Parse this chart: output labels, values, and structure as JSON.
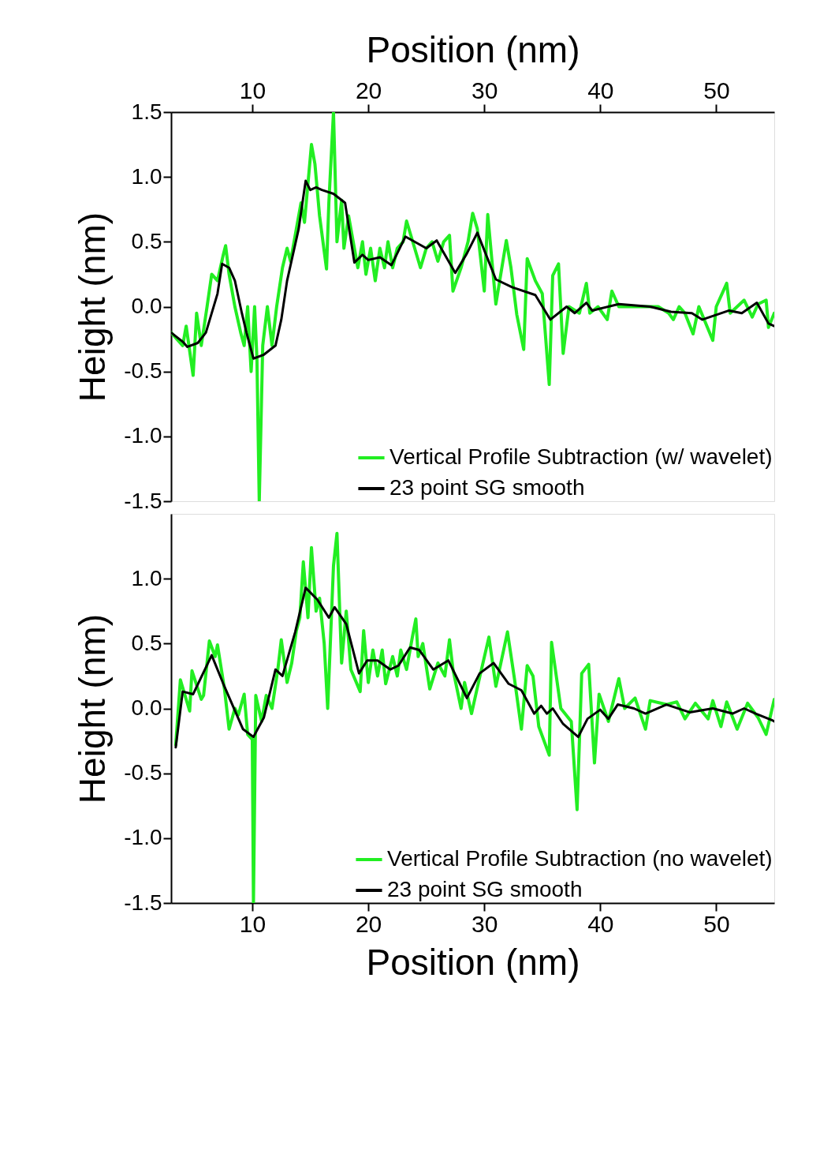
{
  "chart_data": [
    {
      "type": "line",
      "xlabel": "Position (nm)",
      "ylabel": "Height (nm)",
      "xlim": [
        3,
        55
      ],
      "ylim": [
        -1.5,
        1.5
      ],
      "xticks": [
        10,
        20,
        30,
        40,
        50
      ],
      "yticks": [
        {
          "value": -1.5,
          "label": "-1.5"
        },
        {
          "value": -1.0,
          "label": "-1.0"
        },
        {
          "value": -0.5,
          "label": "-0.5"
        },
        {
          "value": 0.0,
          "label": "0.0"
        },
        {
          "value": 0.5,
          "label": "0.5"
        },
        {
          "value": 1.0,
          "label": "1.0"
        },
        {
          "value": 1.5,
          "label": "1.5"
        }
      ],
      "legend": "bottom right",
      "series": [
        {
          "name": "Vertical Profile Subtraction (w/ wavelet)",
          "color": "#22ee22",
          "x": [
            3.0,
            3.5,
            4.0,
            4.3,
            4.9,
            5.2,
            5.6,
            6.1,
            6.5,
            7.0,
            7.5,
            7.7,
            8.0,
            8.5,
            9.0,
            9.3,
            9.6,
            9.9,
            10.2,
            10.4,
            10.6,
            10.9,
            11.3,
            11.7,
            12.1,
            12.6,
            13.0,
            13.3,
            13.8,
            14.2,
            14.5,
            15.1,
            15.4,
            15.8,
            16.4,
            16.6,
            17.0,
            17.3,
            17.7,
            17.9,
            18.3,
            18.7,
            19.1,
            19.5,
            19.8,
            20.2,
            20.6,
            21.0,
            21.4,
            21.7,
            22.1,
            22.5,
            23.0,
            23.3,
            24.0,
            24.5,
            25.0,
            25.5,
            26.0,
            26.5,
            27.0,
            27.3,
            28.0,
            28.6,
            29.0,
            29.4,
            30.0,
            30.3,
            31.0,
            31.9,
            32.3,
            32.8,
            33.4,
            33.7,
            34.4,
            35.0,
            35.6,
            35.9,
            36.4,
            36.8,
            37.3,
            38.2,
            38.8,
            39.1,
            39.8,
            40.6,
            41.0,
            41.6,
            43.0,
            45.0,
            45.9,
            46.3,
            46.8,
            47.3,
            48.0,
            48.5,
            49.7,
            50.0,
            50.9,
            51.2,
            52.4,
            53.1,
            53.6,
            54.3,
            54.5,
            55.0
          ],
          "values": [
            -0.2,
            -0.25,
            -0.3,
            -0.15,
            -0.53,
            -0.05,
            -0.3,
            0.0,
            0.25,
            0.2,
            0.4,
            0.47,
            0.25,
            0.0,
            -0.2,
            -0.3,
            0.0,
            -0.5,
            0.0,
            -0.4,
            -1.5,
            -0.3,
            0.0,
            -0.3,
            0.0,
            0.3,
            0.45,
            0.35,
            0.6,
            0.8,
            0.65,
            1.25,
            1.1,
            0.7,
            0.29,
            0.8,
            1.5,
            0.5,
            0.82,
            0.45,
            0.7,
            0.5,
            0.3,
            0.5,
            0.25,
            0.45,
            0.2,
            0.45,
            0.3,
            0.5,
            0.3,
            0.45,
            0.5,
            0.66,
            0.45,
            0.3,
            0.45,
            0.5,
            0.35,
            0.5,
            0.55,
            0.12,
            0.3,
            0.5,
            0.72,
            0.6,
            0.12,
            0.71,
            0.02,
            0.51,
            0.3,
            -0.06,
            -0.33,
            0.37,
            0.2,
            0.1,
            -0.6,
            0.24,
            0.33,
            -0.36,
            0.0,
            -0.05,
            0.18,
            -0.05,
            0.0,
            -0.1,
            0.12,
            0.0,
            0.0,
            0.0,
            -0.05,
            -0.1,
            0.0,
            -0.05,
            -0.21,
            0.0,
            -0.26,
            0.0,
            0.18,
            -0.05,
            0.05,
            -0.08,
            0.02,
            0.05,
            -0.16,
            -0.05
          ]
        },
        {
          "name": "23 point SG smooth",
          "color": "#000000",
          "x": [
            3.0,
            4.0,
            4.4,
            5.3,
            6.0,
            7.0,
            7.4,
            8.0,
            8.5,
            9.1,
            9.5,
            10.1,
            11.0,
            12.0,
            12.5,
            13.0,
            13.5,
            14.0,
            14.6,
            15.0,
            15.5,
            16.0,
            17.0,
            18.0,
            18.8,
            19.5,
            20.0,
            21.0,
            22.0,
            23.2,
            25.0,
            25.9,
            27.5,
            28.5,
            29.4,
            31.0,
            32.4,
            34.4,
            35.7,
            37.1,
            37.8,
            38.8,
            39.3,
            41.6,
            44.3,
            46.1,
            47.9,
            48.8,
            51.1,
            52.2,
            53.5,
            54.5,
            55.0
          ],
          "values": [
            -0.2,
            -0.27,
            -0.31,
            -0.28,
            -0.2,
            0.1,
            0.33,
            0.3,
            0.2,
            -0.05,
            -0.2,
            -0.4,
            -0.37,
            -0.3,
            -0.1,
            0.2,
            0.4,
            0.6,
            0.97,
            0.9,
            0.92,
            0.9,
            0.87,
            0.8,
            0.34,
            0.4,
            0.36,
            0.38,
            0.32,
            0.54,
            0.45,
            0.51,
            0.26,
            0.41,
            0.57,
            0.21,
            0.15,
            0.09,
            -0.1,
            0.0,
            -0.05,
            0.03,
            -0.03,
            0.02,
            0.0,
            -0.04,
            -0.05,
            -0.1,
            -0.03,
            -0.05,
            0.03,
            -0.13,
            -0.15
          ]
        }
      ]
    },
    {
      "type": "line",
      "xlabel": "Position (nm)",
      "ylabel": "Height (nm)",
      "xlim": [
        3,
        55
      ],
      "ylim": [
        -1.5,
        1.5
      ],
      "xticks": [
        10,
        20,
        30,
        40,
        50
      ],
      "yticks": [
        {
          "value": -1.5,
          "label": "-1.5"
        },
        {
          "value": -1.0,
          "label": "-1.0"
        },
        {
          "value": -0.5,
          "label": "-0.5"
        },
        {
          "value": 0.0,
          "label": "0.0"
        },
        {
          "value": 0.5,
          "label": "0.5"
        },
        {
          "value": 1.0,
          "label": "1.0"
        }
      ],
      "legend": "bottom right",
      "series": [
        {
          "name": "Vertical Profile Subtraction (no wavelet)",
          "color": "#22ee22",
          "x": [
            3.4,
            3.8,
            4.6,
            4.8,
            5.6,
            5.8,
            6.3,
            6.8,
            7.0,
            7.6,
            8.0,
            8.5,
            8.8,
            9.3,
            9.6,
            10.0,
            10.1,
            10.3,
            10.8,
            11.2,
            11.7,
            12.2,
            12.5,
            13.0,
            13.4,
            13.8,
            14.1,
            14.4,
            14.8,
            15.1,
            15.5,
            15.8,
            16.2,
            16.5,
            17.0,
            17.3,
            17.7,
            18.1,
            18.5,
            19.3,
            19.6,
            20.0,
            20.4,
            20.8,
            21.2,
            21.5,
            22.1,
            22.5,
            22.8,
            23.3,
            23.8,
            24.1,
            24.3,
            24.7,
            25.3,
            26.0,
            26.6,
            27.0,
            27.3,
            28.0,
            28.3,
            28.9,
            29.5,
            30.4,
            31.0,
            32.0,
            32.6,
            33.2,
            33.7,
            34.2,
            34.7,
            35.6,
            35.8,
            36.6,
            37.5,
            38.0,
            38.4,
            39.0,
            39.5,
            39.9,
            40.7,
            41.6,
            42.1,
            43.0,
            43.9,
            44.3,
            45.7,
            46.6,
            47.3,
            48.2,
            49.3,
            49.7,
            50.4,
            50.9,
            51.8,
            52.7,
            53.6,
            54.3,
            55.0
          ],
          "values": [
            -0.28,
            0.22,
            -0.02,
            0.29,
            0.07,
            0.1,
            0.52,
            0.4,
            0.49,
            0.15,
            -0.16,
            0.0,
            -0.05,
            0.11,
            -0.2,
            -0.24,
            -1.5,
            0.1,
            -0.1,
            0.1,
            0.0,
            0.3,
            0.53,
            0.2,
            0.35,
            0.6,
            0.7,
            1.13,
            0.7,
            1.24,
            0.75,
            0.85,
            0.5,
            0.0,
            1.1,
            1.35,
            0.35,
            0.75,
            0.3,
            0.13,
            0.6,
            0.2,
            0.45,
            0.25,
            0.45,
            0.19,
            0.4,
            0.25,
            0.45,
            0.3,
            0.55,
            0.69,
            0.4,
            0.5,
            0.15,
            0.35,
            0.25,
            0.53,
            0.3,
            0.0,
            0.2,
            -0.04,
            0.2,
            0.55,
            0.17,
            0.59,
            0.23,
            -0.16,
            0.33,
            0.25,
            -0.14,
            -0.36,
            0.51,
            0.0,
            -0.1,
            -0.78,
            0.27,
            0.34,
            -0.42,
            0.11,
            -0.1,
            0.23,
            0.0,
            0.08,
            -0.16,
            0.06,
            0.03,
            0.05,
            -0.08,
            0.04,
            -0.08,
            0.06,
            -0.14,
            0.05,
            -0.16,
            0.04,
            -0.07,
            -0.2,
            0.07
          ]
        },
        {
          "name": "23 point SG smooth",
          "color": "#000000",
          "x": [
            3.4,
            4.0,
            4.9,
            6.5,
            7.5,
            9.2,
            10.1,
            11.0,
            12.0,
            12.6,
            13.7,
            14.6,
            15.6,
            16.6,
            17.1,
            18.1,
            19.2,
            19.9,
            20.8,
            21.9,
            22.6,
            23.6,
            24.4,
            25.6,
            26.9,
            28.5,
            29.6,
            30.8,
            32.1,
            33.2,
            34.3,
            34.9,
            35.4,
            35.9,
            36.8,
            38.1,
            38.9,
            40.0,
            40.7,
            41.5,
            42.9,
            43.9,
            45.7,
            47.7,
            49.7,
            51.4,
            52.4,
            53.4,
            54.8,
            55.0
          ],
          "values": [
            -0.3,
            0.13,
            0.11,
            0.41,
            0.19,
            -0.16,
            -0.22,
            -0.07,
            0.3,
            0.25,
            0.59,
            0.93,
            0.84,
            0.7,
            0.78,
            0.65,
            0.27,
            0.37,
            0.37,
            0.3,
            0.33,
            0.47,
            0.45,
            0.3,
            0.37,
            0.08,
            0.27,
            0.35,
            0.19,
            0.14,
            -0.04,
            0.02,
            -0.04,
            0.0,
            -0.12,
            -0.22,
            -0.08,
            -0.01,
            -0.08,
            0.03,
            0.0,
            -0.04,
            0.03,
            -0.03,
            0.0,
            -0.04,
            0.0,
            -0.04,
            -0.09,
            -0.1
          ]
        }
      ]
    }
  ]
}
